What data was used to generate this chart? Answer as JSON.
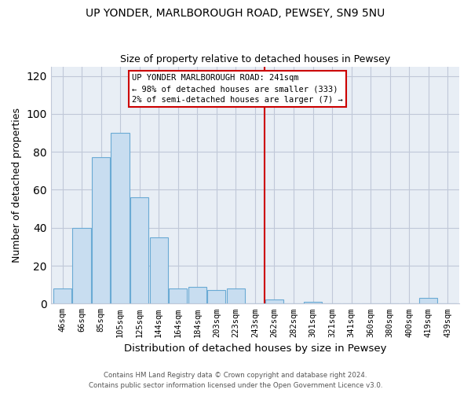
{
  "title": "UP YONDER, MARLBOROUGH ROAD, PEWSEY, SN9 5NU",
  "subtitle": "Size of property relative to detached houses in Pewsey",
  "xlabel": "Distribution of detached houses by size in Pewsey",
  "ylabel": "Number of detached properties",
  "bar_labels": [
    "46sqm",
    "66sqm",
    "85sqm",
    "105sqm",
    "125sqm",
    "144sqm",
    "164sqm",
    "184sqm",
    "203sqm",
    "223sqm",
    "243sqm",
    "262sqm",
    "282sqm",
    "301sqm",
    "321sqm",
    "341sqm",
    "360sqm",
    "380sqm",
    "400sqm",
    "419sqm",
    "439sqm"
  ],
  "bar_heights": [
    8,
    40,
    77,
    90,
    56,
    35,
    8,
    9,
    7,
    8,
    0,
    2,
    0,
    1,
    0,
    0,
    0,
    0,
    0,
    3,
    0
  ],
  "bar_color": "#c8ddf0",
  "bar_edge_color": "#6aaad4",
  "vline_x_index": 10,
  "vline_color": "#cc0000",
  "ylim": [
    0,
    125
  ],
  "yticks": [
    0,
    20,
    40,
    60,
    80,
    100,
    120
  ],
  "annotation_title": "UP YONDER MARLBOROUGH ROAD: 241sqm",
  "annotation_line1": "← 98% of detached houses are smaller (333)",
  "annotation_line2": "2% of semi-detached houses are larger (7) →",
  "footer_line1": "Contains HM Land Registry data © Crown copyright and database right 2024.",
  "footer_line2": "Contains public sector information licensed under the Open Government Licence v3.0.",
  "plot_bg_color": "#e8eef5",
  "fig_bg_color": "#ffffff"
}
